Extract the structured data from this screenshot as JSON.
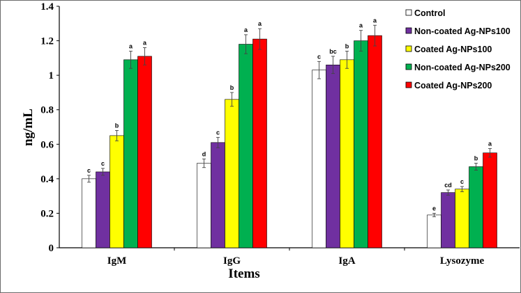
{
  "chart_data": {
    "type": "bar",
    "categories": [
      "IgM",
      "IgG",
      "IgA",
      "Lysozyme"
    ],
    "xlabel": "Items",
    "ylabel": "ng/mL",
    "ylim": [
      0,
      1.4
    ],
    "yticks": [
      "0",
      "0.2",
      "0.4",
      "0.6",
      "0.8",
      "1",
      "1.2",
      "1.4"
    ],
    "grid": false,
    "legend": "top-right",
    "series": [
      {
        "name": "Control",
        "color": "#ffffff",
        "values": [
          0.4,
          0.49,
          1.03,
          0.19
        ],
        "errors": [
          0.02,
          0.025,
          0.05,
          0.01
        ],
        "letters": [
          "c",
          "d",
          "c",
          "e"
        ]
      },
      {
        "name": "Non-coated Ag-NPs100",
        "color": "#7030a0",
        "values": [
          0.44,
          0.61,
          1.06,
          0.32
        ],
        "errors": [
          0.02,
          0.03,
          0.05,
          0.015
        ],
        "letters": [
          "c",
          "c",
          "bc",
          "cd"
        ]
      },
      {
        "name": "Coated Ag-NPs100",
        "color": "#ffff00",
        "values": [
          0.65,
          0.86,
          1.09,
          0.34
        ],
        "errors": [
          0.03,
          0.04,
          0.05,
          0.015
        ],
        "letters": [
          "b",
          "b",
          "b",
          "c"
        ]
      },
      {
        "name": "Non-coated Ag-NPs200",
        "color": "#00b050",
        "values": [
          1.09,
          1.18,
          1.2,
          0.47
        ],
        "errors": [
          0.05,
          0.055,
          0.06,
          0.02
        ],
        "letters": [
          "a",
          "a",
          "a",
          "b"
        ]
      },
      {
        "name": "Coated Ag-NPs200",
        "color": "#ff0000",
        "values": [
          1.11,
          1.21,
          1.23,
          0.55
        ],
        "errors": [
          0.05,
          0.06,
          0.06,
          0.025
        ],
        "letters": [
          "a",
          "a",
          "a",
          "a"
        ]
      }
    ]
  }
}
